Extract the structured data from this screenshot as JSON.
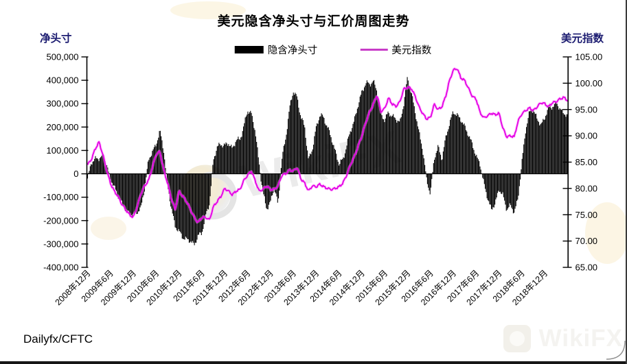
{
  "title": "美元隐含净头寸与汇价周图走势",
  "source_label": "Dailyfx/CFTC",
  "watermark": {
    "center_text": "WikiFX",
    "corner_text": "WikiFX"
  },
  "left_axis": {
    "header": "净头寸",
    "ticks": [
      "500,000",
      "400,000",
      "300,000",
      "200,000",
      "100,000",
      "0",
      "-100,000",
      "-200,000",
      "-300,000",
      "-400,000"
    ],
    "tick_values": [
      500000,
      400000,
      300000,
      200000,
      100000,
      0,
      -100000,
      -200000,
      -300000,
      -400000
    ]
  },
  "right_axis": {
    "header": "美元指数",
    "ticks": [
      "105.00",
      "100.00",
      "95.00",
      "90.00",
      "85.00",
      "80.00",
      "75.00",
      "70.00",
      "65.00"
    ],
    "tick_values": [
      105,
      100,
      95,
      90,
      85,
      80,
      75,
      70,
      65
    ]
  },
  "legend": [
    {
      "label": "隐含净头寸",
      "type": "bar",
      "color": "#000000"
    },
    {
      "label": "美元指数",
      "type": "line",
      "color": "#e405e4"
    }
  ],
  "chart_data": {
    "type": "bar",
    "note": "combo chart: weekly bars (implied net position, left axis) + line (USD index, right axis); monthly anchor values read from pixels",
    "left_ylim": [
      -400000,
      500000
    ],
    "right_ylim": [
      65,
      105
    ],
    "legend_position": "top",
    "grid": false,
    "x_tick_labels": [
      "2008年12月",
      "2009年6月",
      "2009年12月",
      "2010年6月",
      "2010年12月",
      "2011年6月",
      "2011年12月",
      "2012年6月",
      "2012年12月",
      "2013年6月",
      "2013年12月",
      "2014年6月",
      "2014年12月",
      "2015年6月",
      "2015年12月",
      "2016年6月",
      "2016年12月",
      "2017年6月",
      "2017年12月",
      "2018年6月",
      "2018年12月"
    ],
    "x": [
      "2008-12",
      "2009-01",
      "2009-02",
      "2009-03",
      "2009-04",
      "2009-05",
      "2009-06",
      "2009-07",
      "2009-08",
      "2009-09",
      "2009-10",
      "2009-11",
      "2009-12",
      "2010-01",
      "2010-02",
      "2010-03",
      "2010-04",
      "2010-05",
      "2010-06",
      "2010-07",
      "2010-08",
      "2010-09",
      "2010-10",
      "2010-11",
      "2010-12",
      "2011-01",
      "2011-02",
      "2011-03",
      "2011-04",
      "2011-05",
      "2011-06",
      "2011-07",
      "2011-08",
      "2011-09",
      "2011-10",
      "2011-11",
      "2011-12",
      "2012-01",
      "2012-02",
      "2012-03",
      "2012-04",
      "2012-05",
      "2012-06",
      "2012-07",
      "2012-08",
      "2012-09",
      "2012-10",
      "2012-11",
      "2012-12",
      "2013-01",
      "2013-02",
      "2013-03",
      "2013-04",
      "2013-05",
      "2013-06",
      "2013-07",
      "2013-08",
      "2013-09",
      "2013-10",
      "2013-11",
      "2013-12",
      "2014-01",
      "2014-02",
      "2014-03",
      "2014-04",
      "2014-05",
      "2014-06",
      "2014-07",
      "2014-08",
      "2014-09",
      "2014-10",
      "2014-11",
      "2014-12",
      "2015-01",
      "2015-02",
      "2015-03",
      "2015-04",
      "2015-05",
      "2015-06",
      "2015-07",
      "2015-08",
      "2015-09",
      "2015-10",
      "2015-11",
      "2015-12",
      "2016-01",
      "2016-02",
      "2016-03",
      "2016-04",
      "2016-05",
      "2016-06",
      "2016-07",
      "2016-08",
      "2016-09",
      "2016-10",
      "2016-11",
      "2016-12",
      "2017-01",
      "2017-02",
      "2017-03",
      "2017-04",
      "2017-05",
      "2017-06",
      "2017-07",
      "2017-08",
      "2017-09",
      "2017-10",
      "2017-11",
      "2017-12",
      "2018-01",
      "2018-02",
      "2018-03",
      "2018-04",
      "2018-05",
      "2018-06",
      "2018-07",
      "2018-08",
      "2018-09",
      "2018-10",
      "2018-11",
      "2018-12",
      "2019-01",
      "2019-02",
      "2019-03",
      "2019-04",
      "2019-05",
      "2019-06"
    ],
    "series": [
      {
        "name": "隐含净头寸",
        "type": "bar",
        "axis": "left",
        "color": "#000000",
        "values": [
          -20000,
          50000,
          60000,
          70000,
          75000,
          40000,
          -20000,
          -60000,
          -90000,
          -130000,
          -150000,
          -170000,
          -180000,
          -160000,
          -150000,
          -60000,
          60000,
          90000,
          130000,
          180000,
          100000,
          -50000,
          -150000,
          -220000,
          -250000,
          -270000,
          -280000,
          -290000,
          -300000,
          -270000,
          -250000,
          -180000,
          -130000,
          60000,
          110000,
          130000,
          120000,
          130000,
          110000,
          140000,
          150000,
          200000,
          270000,
          260000,
          180000,
          50000,
          -80000,
          -150000,
          -120000,
          -60000,
          -130000,
          60000,
          150000,
          280000,
          350000,
          330000,
          240000,
          200000,
          60000,
          100000,
          200000,
          250000,
          240000,
          200000,
          150000,
          100000,
          40000,
          60000,
          120000,
          180000,
          230000,
          290000,
          350000,
          390000,
          380000,
          400000,
          350000,
          260000,
          230000,
          260000,
          250000,
          230000,
          220000,
          300000,
          410000,
          350000,
          260000,
          180000,
          100000,
          -30000,
          -80000,
          60000,
          120000,
          60000,
          150000,
          220000,
          260000,
          255000,
          230000,
          200000,
          170000,
          120000,
          80000,
          40000,
          -40000,
          -100000,
          -160000,
          -120000,
          -70000,
          -90000,
          -150000,
          -140000,
          -160000,
          -110000,
          50000,
          190000,
          260000,
          280000,
          230000,
          210000,
          240000,
          280000,
          290000,
          300000,
          280000,
          260000,
          245000
        ]
      },
      {
        "name": "美元指数",
        "type": "line",
        "axis": "right",
        "color": "#e405e4",
        "values": [
          84.5,
          85.5,
          87.5,
          88.8,
          86.5,
          83.5,
          81.0,
          79.5,
          78.5,
          77.0,
          76.0,
          75.0,
          74.5,
          76.5,
          79.0,
          80.5,
          81.5,
          84.0,
          86.5,
          87.0,
          83.5,
          81.0,
          78.0,
          76.0,
          79.5,
          78.5,
          77.5,
          76.0,
          74.5,
          73.5,
          74.5,
          74.5,
          74.0,
          76.5,
          77.5,
          78.5,
          80.0,
          79.5,
          78.8,
          79.5,
          79.8,
          81.5,
          82.5,
          83.3,
          81.5,
          79.5,
          79.8,
          80.5,
          79.8,
          79.8,
          80.5,
          82.5,
          82.8,
          83.5,
          83.3,
          84.0,
          81.8,
          81.0,
          79.5,
          80.5,
          80.3,
          80.8,
          80.3,
          80.0,
          79.8,
          80.0,
          80.3,
          81.0,
          82.5,
          84.5,
          86.0,
          88.0,
          90.0,
          92.5,
          94.5,
          96.0,
          97.8,
          94.6,
          95.2,
          97.2,
          96.0,
          95.6,
          96.5,
          98.9,
          99.2,
          99.0,
          97.5,
          95.5,
          94.2,
          93.2,
          93.5,
          96.0,
          95.0,
          95.5,
          97.5,
          100.5,
          102.5,
          102.8,
          101.0,
          100.5,
          99.0,
          97.5,
          97.0,
          94.5,
          93.4,
          93.8,
          94.3,
          94.0,
          94.3,
          91.5,
          89.8,
          90.0,
          89.8,
          92.8,
          94.2,
          94.8,
          95.3,
          94.8,
          95.5,
          96.3,
          96.1,
          95.5,
          96.3,
          96.5,
          97.0,
          97.3,
          96.7
        ]
      }
    ]
  }
}
